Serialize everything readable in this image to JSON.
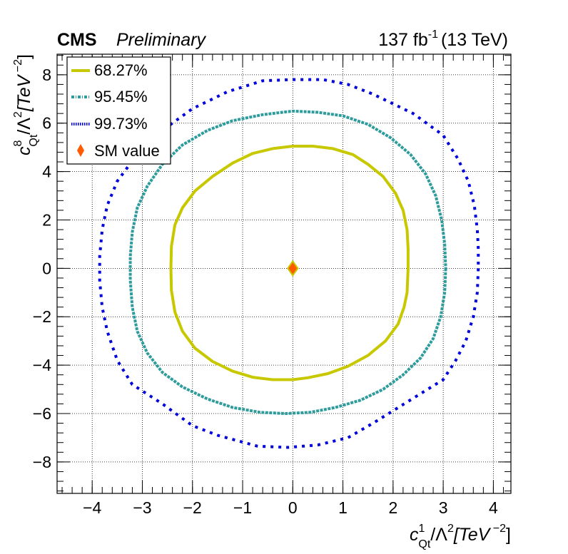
{
  "chart_data": {
    "type": "scatter",
    "header": {
      "experiment": "CMS",
      "status": "Preliminary",
      "lumi_value": "137 fb",
      "lumi_exponent": "-1",
      "energy": "(13 TeV)"
    },
    "xlabel": {
      "base": "c",
      "sup": "1",
      "sub": "Qt",
      "rest": "/Λ",
      "rest_sup": "2",
      "unit": "[TeV",
      "unit_sup": " −2",
      "close": "]"
    },
    "ylabel": {
      "base": "c",
      "sup": "8",
      "sub": "Qt",
      "rest": "/Λ",
      "rest_sup": "2",
      "unit": "[TeV",
      "unit_sup": " −2",
      "close": "]"
    },
    "xlim": [
      -4.7,
      4.35
    ],
    "ylim": [
      -9.3,
      8.85
    ],
    "x_ticks": [
      -4,
      -3,
      -2,
      -1,
      0,
      1,
      2,
      3,
      4
    ],
    "x_tick_labels": [
      "−4",
      "−3",
      "−2",
      "−1",
      "0",
      "1",
      "2",
      "3",
      "4"
    ],
    "y_ticks": [
      -8,
      -6,
      -4,
      -2,
      0,
      2,
      4,
      6,
      8
    ],
    "y_tick_labels": [
      "−8",
      "−6",
      "−4",
      "−2",
      "0",
      "2",
      "4",
      "6",
      "8"
    ],
    "grid": true,
    "legend_position": "top-left",
    "series": [
      {
        "name": "68.27%",
        "color": "#c8c800",
        "style": "solid",
        "points": [
          [
            2.3,
            0
          ],
          [
            2.28,
            -1
          ],
          [
            2.22,
            -1.6
          ],
          [
            2.1,
            -2.3
          ],
          [
            1.85,
            -3
          ],
          [
            1.5,
            -3.6
          ],
          [
            1.1,
            -4.05
          ],
          [
            0.7,
            -4.35
          ],
          [
            0.3,
            -4.52
          ],
          [
            0,
            -4.6
          ],
          [
            -0.4,
            -4.6
          ],
          [
            -0.8,
            -4.5
          ],
          [
            -1.2,
            -4.25
          ],
          [
            -1.6,
            -3.85
          ],
          [
            -1.95,
            -3.3
          ],
          [
            -2.2,
            -2.6
          ],
          [
            -2.35,
            -1.8
          ],
          [
            -2.42,
            -0.9
          ],
          [
            -2.43,
            0
          ],
          [
            -2.42,
            0.9
          ],
          [
            -2.35,
            1.8
          ],
          [
            -2.2,
            2.5
          ],
          [
            -1.95,
            3.2
          ],
          [
            -1.6,
            3.8
          ],
          [
            -1.2,
            4.35
          ],
          [
            -0.8,
            4.75
          ],
          [
            -0.4,
            4.95
          ],
          [
            0,
            5.05
          ],
          [
            0.4,
            5.05
          ],
          [
            0.8,
            4.95
          ],
          [
            1.2,
            4.7
          ],
          [
            1.5,
            4.3
          ],
          [
            1.8,
            3.8
          ],
          [
            2.05,
            3.1
          ],
          [
            2.2,
            2.4
          ],
          [
            2.28,
            1.6
          ],
          [
            2.3,
            0.8
          ],
          [
            2.3,
            0
          ]
        ]
      },
      {
        "name": "95.45%",
        "color": "#2e9c9c",
        "style": "dashed",
        "points": [
          [
            3.05,
            0
          ],
          [
            3.03,
            -1
          ],
          [
            2.95,
            -2
          ],
          [
            2.8,
            -2.9
          ],
          [
            2.55,
            -3.7
          ],
          [
            2.2,
            -4.4
          ],
          [
            1.8,
            -5.0
          ],
          [
            1.35,
            -5.45
          ],
          [
            0.85,
            -5.75
          ],
          [
            0.35,
            -5.95
          ],
          [
            -0.15,
            -6.0
          ],
          [
            -0.65,
            -5.95
          ],
          [
            -1.2,
            -5.75
          ],
          [
            -1.7,
            -5.4
          ],
          [
            -2.2,
            -4.9
          ],
          [
            -2.6,
            -4.3
          ],
          [
            -2.9,
            -3.5
          ],
          [
            -3.1,
            -2.6
          ],
          [
            -3.2,
            -1.6
          ],
          [
            -3.24,
            -0.5
          ],
          [
            -3.24,
            0.5
          ],
          [
            -3.2,
            1.5
          ],
          [
            -3.1,
            2.5
          ],
          [
            -2.9,
            3.4
          ],
          [
            -2.6,
            4.3
          ],
          [
            -2.2,
            5.1
          ],
          [
            -1.7,
            5.7
          ],
          [
            -1.2,
            6.1
          ],
          [
            -0.6,
            6.35
          ],
          [
            0,
            6.5
          ],
          [
            0.5,
            6.45
          ],
          [
            1.0,
            6.3
          ],
          [
            1.5,
            5.95
          ],
          [
            1.95,
            5.4
          ],
          [
            2.35,
            4.7
          ],
          [
            2.65,
            3.9
          ],
          [
            2.85,
            3.0
          ],
          [
            2.97,
            2.0
          ],
          [
            3.03,
            1.0
          ],
          [
            3.05,
            0
          ]
        ]
      },
      {
        "name": "99.73%",
        "color": "#0000dd",
        "style": "dotted",
        "points": [
          [
            3.7,
            0
          ],
          [
            3.68,
            -1
          ],
          [
            3.6,
            -2
          ],
          [
            3.45,
            -3
          ],
          [
            3.25,
            -3.8
          ],
          [
            3.0,
            -4.6
          ],
          [
            2.3,
            -5.5
          ],
          [
            1.6,
            -6.4
          ],
          [
            1.1,
            -7.0
          ],
          [
            0.5,
            -7.3
          ],
          [
            -0.1,
            -7.4
          ],
          [
            -0.7,
            -7.35
          ],
          [
            -1.5,
            -6.9
          ],
          [
            -2.0,
            -6.5
          ],
          [
            -2.6,
            -5.6
          ],
          [
            -3.2,
            -4.8
          ],
          [
            -3.5,
            -3.8
          ],
          [
            -3.7,
            -2.6
          ],
          [
            -3.8,
            -1.6
          ],
          [
            -3.85,
            -0.5
          ],
          [
            -3.85,
            0.5
          ],
          [
            -3.8,
            1.6
          ],
          [
            -3.7,
            2.6
          ],
          [
            -3.5,
            3.6
          ],
          [
            -3.25,
            4.3
          ],
          [
            -2.6,
            5.7
          ],
          [
            -2.0,
            6.6
          ],
          [
            -1.3,
            7.3
          ],
          [
            -0.6,
            7.75
          ],
          [
            0,
            7.8
          ],
          [
            0.6,
            7.8
          ],
          [
            1.1,
            7.6
          ],
          [
            1.6,
            7.2
          ],
          [
            2.4,
            6.4
          ],
          [
            3.0,
            5.5
          ],
          [
            3.3,
            4.5
          ],
          [
            3.5,
            3.6
          ],
          [
            3.62,
            2.6
          ],
          [
            3.68,
            1.6
          ],
          [
            3.7,
            0.8
          ],
          [
            3.7,
            0
          ]
        ]
      }
    ],
    "sm_point": {
      "name": "SM value",
      "x": 0,
      "y": 0,
      "fill": "#ff5a00",
      "stroke": "#c8c800"
    }
  }
}
